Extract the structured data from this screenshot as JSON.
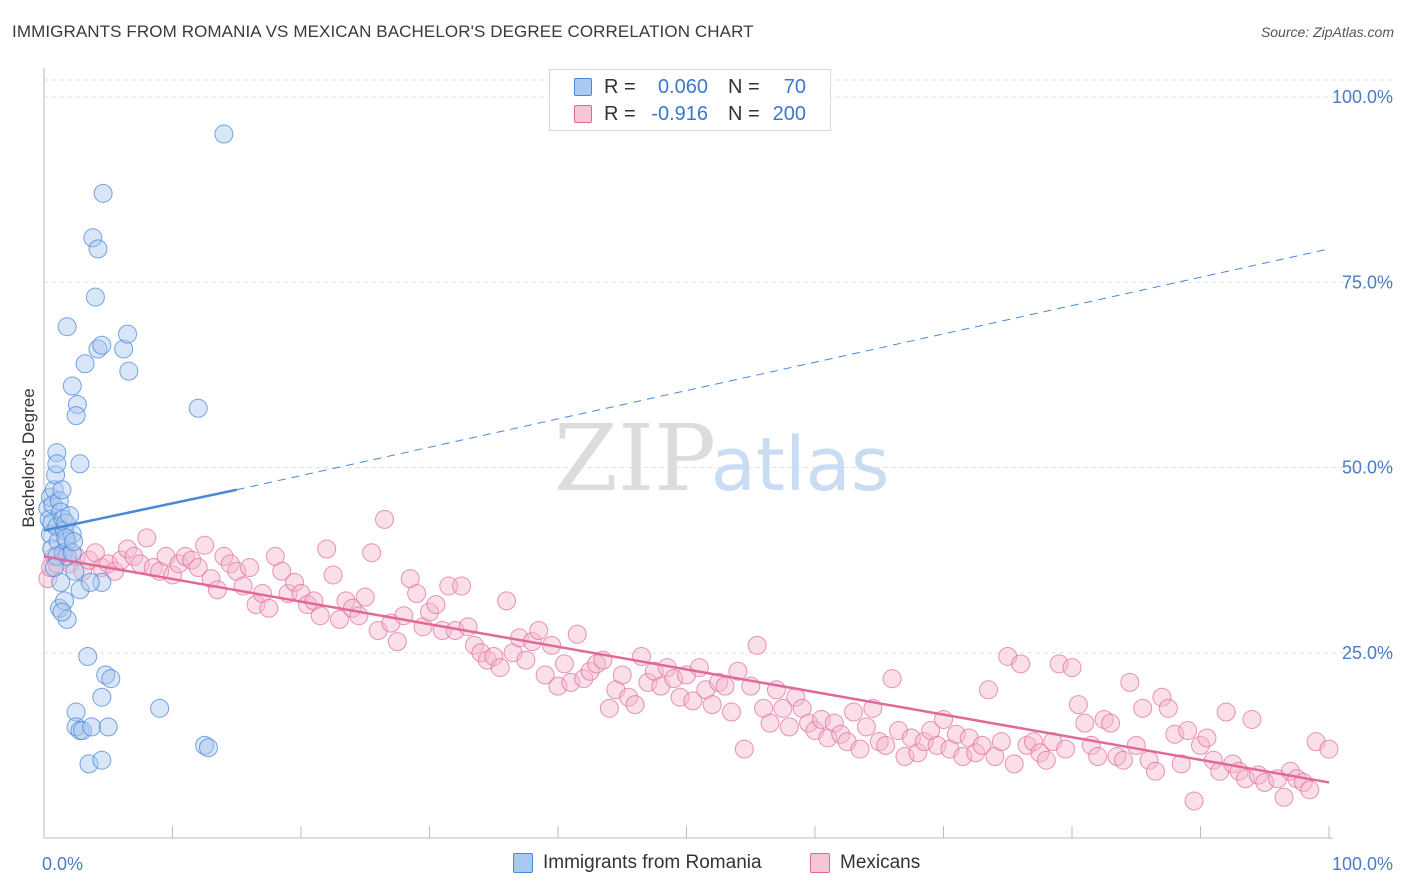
{
  "header": {
    "title": "IMMIGRANTS FROM ROMANIA VS MEXICAN BACHELOR'S DEGREE CORRELATION CHART",
    "source": "Source: ZipAtlas.com"
  },
  "watermark": {
    "zip": "ZIP",
    "atlas": "atlas"
  },
  "stats_legend": {
    "r_label": "R =",
    "n_label": "N =",
    "rows": [
      {
        "name": "Immigrants from Romania",
        "r": "0.060",
        "n": "70"
      },
      {
        "name": "Mexicans",
        "r": "-0.916",
        "n": "200"
      }
    ]
  },
  "colors": {
    "blue": "#4a88d8",
    "blue_fill": "#aac8f0",
    "pink": "#e0699a",
    "pink_fill": "#f5b8cc",
    "tick_label": "#4a7cc8",
    "grid": "#e2e2e2"
  },
  "chart_data": {
    "type": "scatter",
    "title": "IMMIGRANTS FROM ROMANIA VS MEXICAN BACHELOR'S DEGREE CORRELATION CHART",
    "xlabel": "",
    "ylabel": "Bachelor's Degree",
    "xlim": [
      0,
      100
    ],
    "ylim": [
      0,
      100
    ],
    "x_tick_labels": [
      "0.0%",
      "100.0%"
    ],
    "y_ticks": [
      25,
      50,
      75,
      100
    ],
    "y_tick_labels": [
      "25.0%",
      "50.0%",
      "75.0%",
      "100.0%"
    ],
    "legend": [
      "Immigrants from Romania",
      "Mexicans"
    ],
    "series": [
      {
        "name": "Immigrants from Romania",
        "color": "#4a88d8",
        "trend": {
          "x": [
            0,
            15
          ],
          "y": [
            41.5,
            47
          ],
          "dashed_extension_to": [
            100,
            79.5
          ]
        },
        "points": [
          [
            0.3,
            44.5
          ],
          [
            0.4,
            43
          ],
          [
            0.5,
            46
          ],
          [
            0.5,
            41
          ],
          [
            0.6,
            42.5
          ],
          [
            0.6,
            39
          ],
          [
            0.7,
            45
          ],
          [
            0.8,
            47
          ],
          [
            0.9,
            49
          ],
          [
            1,
            52
          ],
          [
            1,
            50.5
          ],
          [
            1,
            42
          ],
          [
            1.1,
            40
          ],
          [
            1.2,
            45.5
          ],
          [
            1.3,
            44
          ],
          [
            1.4,
            47
          ],
          [
            1.5,
            43
          ],
          [
            1.6,
            41.5
          ],
          [
            1.7,
            42.5
          ],
          [
            1.8,
            40
          ],
          [
            2,
            43.5
          ],
          [
            2.2,
            41
          ],
          [
            1.5,
            38.5
          ],
          [
            1.7,
            40.5
          ],
          [
            1.8,
            38
          ],
          [
            2.4,
            36
          ],
          [
            1.3,
            34.5
          ],
          [
            1.2,
            31
          ],
          [
            1.6,
            32
          ],
          [
            1.8,
            29.5
          ],
          [
            1.8,
            69
          ],
          [
            2.2,
            61
          ],
          [
            2.6,
            58.5
          ],
          [
            2.5,
            57
          ],
          [
            2.8,
            50.5
          ],
          [
            3.2,
            64
          ],
          [
            3.8,
            81
          ],
          [
            4.2,
            79.5
          ],
          [
            4,
            73
          ],
          [
            4.2,
            66
          ],
          [
            4.5,
            66.5
          ],
          [
            4.6,
            87
          ],
          [
            4.5,
            34.5
          ],
          [
            4.8,
            22
          ],
          [
            5.2,
            21.5
          ],
          [
            6.2,
            66
          ],
          [
            6.5,
            68
          ],
          [
            6.6,
            63
          ],
          [
            3.4,
            24.5
          ],
          [
            4.5,
            19
          ],
          [
            2.5,
            17
          ],
          [
            2.5,
            15
          ],
          [
            2.8,
            14.5
          ],
          [
            3,
            14.5
          ],
          [
            3.7,
            15
          ],
          [
            3.5,
            10
          ],
          [
            4.5,
            10.5
          ],
          [
            5,
            15
          ],
          [
            9,
            17.5
          ],
          [
            12,
            58
          ],
          [
            12.5,
            12.5
          ],
          [
            12.8,
            12.2
          ],
          [
            14,
            95
          ],
          [
            1,
            38
          ],
          [
            0.8,
            36.5
          ],
          [
            2.2,
            38.5
          ],
          [
            2.8,
            33.5
          ],
          [
            1.4,
            30.5
          ],
          [
            2.3,
            40
          ],
          [
            3.6,
            34.5
          ]
        ]
      },
      {
        "name": "Mexicans",
        "color": "#e0699a",
        "trend": {
          "x": [
            0,
            100
          ],
          "y": [
            38,
            7.5
          ]
        },
        "points": [
          [
            0.3,
            35
          ],
          [
            0.5,
            36.5
          ],
          [
            0.8,
            38
          ],
          [
            1,
            37
          ],
          [
            1.5,
            38.5
          ],
          [
            2,
            37
          ],
          [
            2.5,
            38
          ],
          [
            3,
            36
          ],
          [
            3.5,
            37.5
          ],
          [
            4,
            38.5
          ],
          [
            4.5,
            36.5
          ],
          [
            5,
            37
          ],
          [
            5.5,
            36
          ],
          [
            6,
            37.5
          ],
          [
            6.5,
            39
          ],
          [
            7,
            38
          ],
          [
            7.5,
            37
          ],
          [
            8,
            40.5
          ],
          [
            8.5,
            36.5
          ],
          [
            9,
            36
          ],
          [
            9.5,
            38
          ],
          [
            10,
            35.5
          ],
          [
            10.5,
            37
          ],
          [
            11,
            38
          ],
          [
            11.5,
            37.5
          ],
          [
            12,
            36.5
          ],
          [
            12.5,
            39.5
          ],
          [
            13,
            35
          ],
          [
            13.5,
            33.5
          ],
          [
            14,
            38
          ],
          [
            14.5,
            37
          ],
          [
            15,
            36
          ],
          [
            15.5,
            34
          ],
          [
            16,
            36.5
          ],
          [
            16.5,
            31.5
          ],
          [
            17,
            33
          ],
          [
            17.5,
            31
          ],
          [
            18,
            38
          ],
          [
            18.5,
            36
          ],
          [
            19,
            33
          ],
          [
            19.5,
            34.5
          ],
          [
            20,
            33
          ],
          [
            20.5,
            31.5
          ],
          [
            21,
            32
          ],
          [
            21.5,
            30
          ],
          [
            22,
            39
          ],
          [
            22.5,
            35.5
          ],
          [
            23,
            29.5
          ],
          [
            23.5,
            32
          ],
          [
            24,
            31
          ],
          [
            24.5,
            30
          ],
          [
            25,
            32.5
          ],
          [
            25.5,
            38.5
          ],
          [
            26,
            28
          ],
          [
            26.5,
            43
          ],
          [
            27,
            29
          ],
          [
            27.5,
            26.5
          ],
          [
            28,
            30
          ],
          [
            28.5,
            35
          ],
          [
            29,
            33
          ],
          [
            29.5,
            28.5
          ],
          [
            30,
            30.5
          ],
          [
            30.5,
            31.5
          ],
          [
            31,
            28
          ],
          [
            31.5,
            34
          ],
          [
            32,
            28
          ],
          [
            32.5,
            34
          ],
          [
            33,
            28.5
          ],
          [
            33.5,
            26
          ],
          [
            34,
            25
          ],
          [
            34.5,
            24
          ],
          [
            35,
            24.5
          ],
          [
            35.5,
            23
          ],
          [
            36,
            32
          ],
          [
            36.5,
            25
          ],
          [
            37,
            27
          ],
          [
            37.5,
            24
          ],
          [
            38,
            26.5
          ],
          [
            38.5,
            28
          ],
          [
            39,
            22
          ],
          [
            39.5,
            26
          ],
          [
            40,
            20.5
          ],
          [
            40.5,
            23.5
          ],
          [
            41,
            21
          ],
          [
            41.5,
            27.5
          ],
          [
            42,
            21.5
          ],
          [
            42.5,
            22.5
          ],
          [
            43,
            23.5
          ],
          [
            43.5,
            24
          ],
          [
            44,
            17.5
          ],
          [
            44.5,
            20
          ],
          [
            45,
            22
          ],
          [
            45.5,
            19
          ],
          [
            46,
            18
          ],
          [
            46.5,
            24.5
          ],
          [
            47,
            21
          ],
          [
            47.5,
            22.5
          ],
          [
            48,
            20.5
          ],
          [
            48.5,
            23
          ],
          [
            49,
            21.5
          ],
          [
            49.5,
            19
          ],
          [
            50,
            22
          ],
          [
            50.5,
            18.5
          ],
          [
            51,
            23
          ],
          [
            51.5,
            20
          ],
          [
            52,
            18
          ],
          [
            52.5,
            21
          ],
          [
            53,
            20.5
          ],
          [
            53.5,
            17
          ],
          [
            54,
            22.5
          ],
          [
            54.5,
            12
          ],
          [
            55,
            20.5
          ],
          [
            55.5,
            26
          ],
          [
            56,
            17.5
          ],
          [
            56.5,
            15.5
          ],
          [
            57,
            20
          ],
          [
            57.5,
            17.5
          ],
          [
            58,
            15
          ],
          [
            58.5,
            19
          ],
          [
            59,
            17.5
          ],
          [
            59.5,
            15.5
          ],
          [
            60,
            14.5
          ],
          [
            60.5,
            16
          ],
          [
            61,
            13.5
          ],
          [
            61.5,
            15.5
          ],
          [
            62,
            14
          ],
          [
            62.5,
            13
          ],
          [
            63,
            17
          ],
          [
            63.5,
            12
          ],
          [
            64,
            15
          ],
          [
            64.5,
            17.5
          ],
          [
            65,
            13
          ],
          [
            65.5,
            12.5
          ],
          [
            66,
            21.5
          ],
          [
            66.5,
            14.5
          ],
          [
            67,
            11
          ],
          [
            67.5,
            13.5
          ],
          [
            68,
            11.5
          ],
          [
            68.5,
            13
          ],
          [
            69,
            14.5
          ],
          [
            69.5,
            12.5
          ],
          [
            70,
            16
          ],
          [
            70.5,
            12
          ],
          [
            71,
            14
          ],
          [
            71.5,
            11
          ],
          [
            72,
            13.5
          ],
          [
            72.5,
            11.5
          ],
          [
            73,
            12.5
          ],
          [
            73.5,
            20
          ],
          [
            74,
            11
          ],
          [
            74.5,
            13
          ],
          [
            75,
            24.5
          ],
          [
            75.5,
            10
          ],
          [
            76,
            23.5
          ],
          [
            76.5,
            12.5
          ],
          [
            77,
            13
          ],
          [
            77.5,
            11.5
          ],
          [
            78,
            10.5
          ],
          [
            78.5,
            13
          ],
          [
            79,
            23.5
          ],
          [
            79.5,
            12
          ],
          [
            80,
            23
          ],
          [
            80.5,
            18
          ],
          [
            81,
            15.5
          ],
          [
            81.5,
            12.5
          ],
          [
            82,
            11
          ],
          [
            82.5,
            16
          ],
          [
            83,
            15.5
          ],
          [
            83.5,
            11
          ],
          [
            84,
            10.5
          ],
          [
            84.5,
            21
          ],
          [
            85,
            12.5
          ],
          [
            85.5,
            17.5
          ],
          [
            86,
            10.5
          ],
          [
            86.5,
            9
          ],
          [
            87,
            19
          ],
          [
            87.5,
            17.5
          ],
          [
            88,
            14
          ],
          [
            88.5,
            10
          ],
          [
            89,
            14.5
          ],
          [
            89.5,
            5
          ],
          [
            90,
            12.5
          ],
          [
            90.5,
            13.5
          ],
          [
            91,
            10.5
          ],
          [
            91.5,
            9
          ],
          [
            92,
            17
          ],
          [
            92.5,
            10
          ],
          [
            93,
            9
          ],
          [
            93.5,
            8
          ],
          [
            94,
            16
          ],
          [
            94.5,
            8.5
          ],
          [
            95,
            7.5
          ],
          [
            96,
            8
          ],
          [
            96.5,
            5.5
          ],
          [
            97,
            9
          ],
          [
            97.5,
            8
          ],
          [
            98,
            7.5
          ],
          [
            98.5,
            6.5
          ],
          [
            99,
            13
          ],
          [
            100,
            12
          ]
        ]
      }
    ]
  },
  "bottom_legend": {
    "items": [
      "Immigrants from Romania",
      "Mexicans"
    ]
  }
}
